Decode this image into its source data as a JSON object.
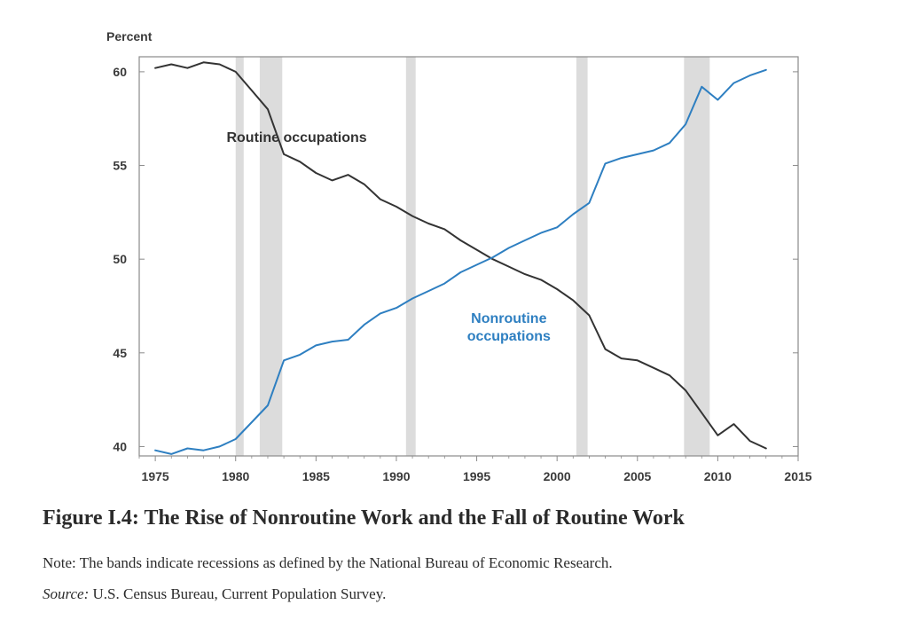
{
  "figure": {
    "title": "Figure I.4: The Rise of Nonroutine Work and the Fall of Routine Work",
    "note": "Note: The bands indicate recessions as defined by the National Bureau of Economic Research.",
    "source_label": "Source:",
    "source_text": " U.S. Census Bureau, Current Population Survey."
  },
  "colors": {
    "routine": "#333333",
    "nonroutine": "#2e7fc1",
    "recession_band": "#dcdcdc",
    "axis": "#8a8a8a"
  },
  "chart_data": {
    "type": "line",
    "ylabel": "Percent",
    "xlim": [
      1974,
      2015
    ],
    "ylim": [
      39.5,
      60.8
    ],
    "x_ticks": [
      1975,
      1980,
      1985,
      1990,
      1995,
      2000,
      2005,
      2010,
      2015
    ],
    "y_ticks": [
      40,
      45,
      50,
      55,
      60
    ],
    "grid": false,
    "recession_bands": [
      [
        1980.0,
        1980.5
      ],
      [
        1981.5,
        1982.9
      ],
      [
        1990.6,
        1991.2
      ],
      [
        2001.2,
        2001.9
      ],
      [
        2007.9,
        2009.5
      ]
    ],
    "series": [
      {
        "name": "Routine occupations",
        "label_lines": [
          "Routine occupations"
        ],
        "color_key": "routine",
        "x": [
          1975,
          1976,
          1977,
          1978,
          1979,
          1980,
          1981,
          1982,
          1983,
          1984,
          1985,
          1986,
          1987,
          1988,
          1989,
          1990,
          1991,
          1992,
          1993,
          1994,
          1995,
          1996,
          1997,
          1998,
          1999,
          2000,
          2001,
          2002,
          2003,
          2004,
          2005,
          2006,
          2007,
          2008,
          2009,
          2010,
          2011,
          2012,
          2013
        ],
        "y": [
          60.2,
          60.4,
          60.2,
          60.5,
          60.4,
          60.0,
          59.0,
          58.0,
          55.6,
          55.2,
          54.6,
          54.2,
          54.5,
          54.0,
          53.2,
          52.8,
          52.3,
          51.9,
          51.6,
          51.0,
          50.5,
          50.0,
          49.6,
          49.2,
          48.9,
          48.4,
          47.8,
          47.0,
          45.2,
          44.7,
          44.6,
          44.2,
          43.8,
          43.0,
          41.8,
          40.6,
          41.2,
          40.3,
          39.9
        ]
      },
      {
        "name": "Nonroutine occupations",
        "label_lines": [
          "Nonroutine",
          "occupations"
        ],
        "color_key": "nonroutine",
        "x": [
          1975,
          1976,
          1977,
          1978,
          1979,
          1980,
          1981,
          1982,
          1983,
          1984,
          1985,
          1986,
          1987,
          1988,
          1989,
          1990,
          1991,
          1992,
          1993,
          1994,
          1995,
          1996,
          1997,
          1998,
          1999,
          2000,
          2001,
          2002,
          2003,
          2004,
          2005,
          2006,
          2007,
          2008,
          2009,
          2010,
          2011,
          2012,
          2013
        ],
        "y": [
          39.8,
          39.6,
          39.9,
          39.8,
          40.0,
          40.4,
          41.3,
          42.2,
          44.6,
          44.9,
          45.4,
          45.6,
          45.7,
          46.5,
          47.1,
          47.4,
          47.9,
          48.3,
          48.7,
          49.3,
          49.7,
          50.1,
          50.6,
          51.0,
          51.4,
          51.7,
          52.4,
          53.0,
          55.1,
          55.4,
          55.6,
          55.8,
          56.2,
          57.2,
          59.2,
          58.5,
          59.4,
          59.8,
          60.1
        ]
      }
    ]
  }
}
